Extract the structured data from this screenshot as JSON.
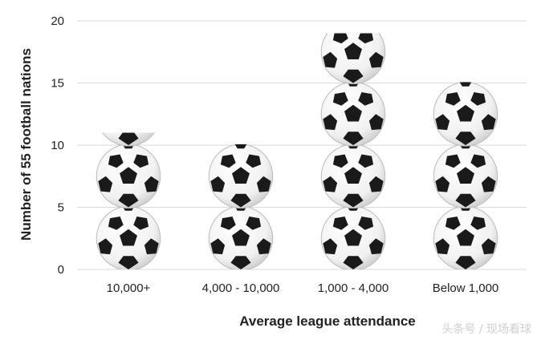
{
  "chart_data": {
    "type": "bar",
    "style": "pictogram",
    "icon": "soccer-ball-icon",
    "categories": [
      "10,000+",
      "4,000 - 10,000",
      "1,000 - 4,000",
      "Below 1,000"
    ],
    "values": [
      11,
      10,
      19,
      15
    ],
    "units_per_icon": 5,
    "title": "",
    "xlabel": "Average league attendance",
    "ylabel": "Number of 55 football nations",
    "ylim": [
      0,
      20
    ],
    "yticks": [
      0,
      5,
      10,
      15,
      20
    ],
    "grid": true
  },
  "watermark": "头条号 / 现场看球",
  "colors": {
    "grid": "#d9d9d9",
    "ball_fill": "#ffffff",
    "ball_patch": "#1a1a1a"
  }
}
